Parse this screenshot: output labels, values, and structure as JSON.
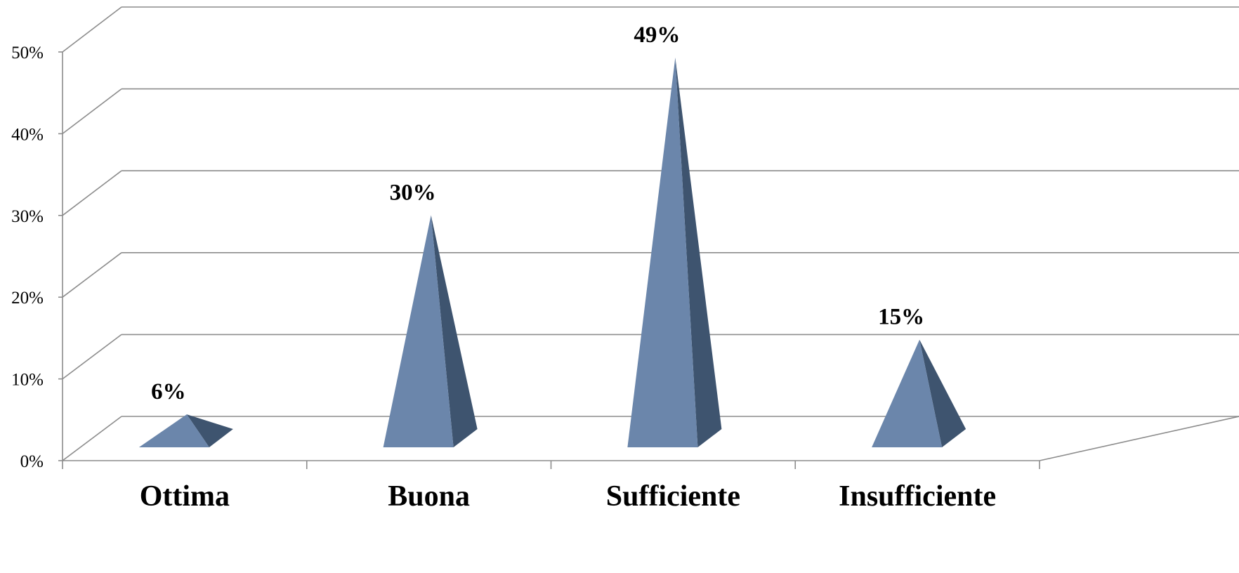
{
  "chart_data": {
    "type": "bar",
    "shape": "pyramid-3d",
    "categories": [
      "Ottima",
      "Buona",
      "Sufficiente",
      "Insufficiente"
    ],
    "values": [
      6,
      30,
      49,
      15
    ],
    "data_labels": [
      "6%",
      "30%",
      "49%",
      "15%"
    ],
    "yticks": [
      "0%",
      "10%",
      "20%",
      "30%",
      "40%",
      "50%"
    ],
    "ylim": [
      0,
      50
    ],
    "grid": true,
    "legend": false,
    "title": "",
    "xlabel": "",
    "ylabel": "",
    "colors": {
      "front": "#6b86ab",
      "side": "#3e546f",
      "grid": "#8c8c8c"
    }
  }
}
